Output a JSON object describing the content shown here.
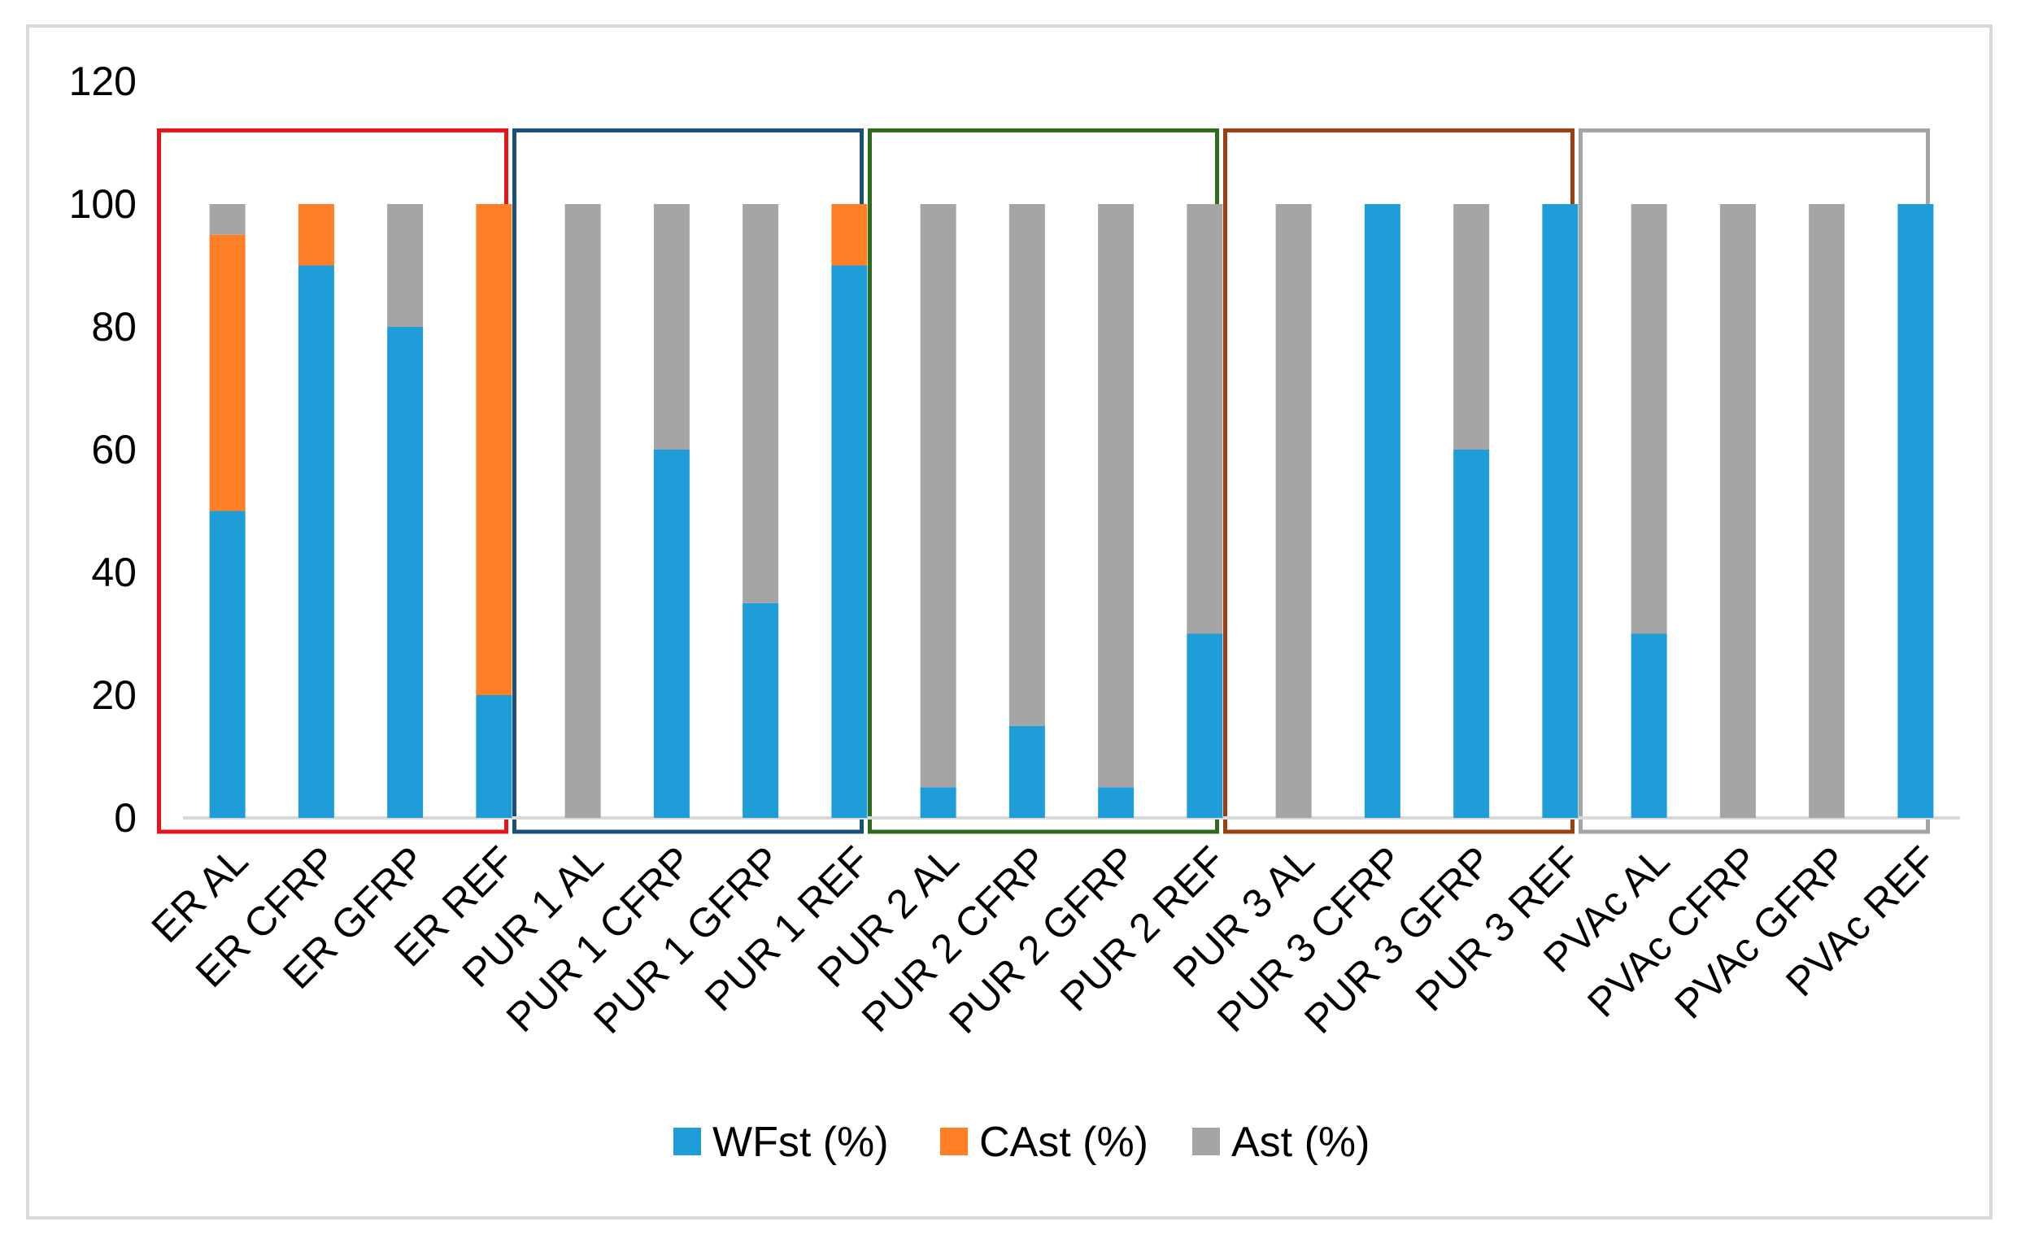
{
  "chart_data": {
    "type": "bar",
    "stacked": true,
    "title": "",
    "xlabel": "",
    "ylabel": "",
    "ylim": [
      0,
      120
    ],
    "yticks": [
      0,
      20,
      40,
      60,
      80,
      100,
      120
    ],
    "grid": false,
    "legend_position": "bottom",
    "categories": [
      "ER AL",
      "ER CFRP",
      "ER GFRP",
      "ER REF",
      "PUR 1 AL",
      "PUR 1 CFRP",
      "PUR 1 GFRP",
      "PUR 1 REF",
      "PUR 2 AL",
      "PUR 2 CFRP",
      "PUR 2 GFRP",
      "PUR 2 REF",
      "PUR 3 AL",
      "PUR 3 CFRP",
      "PUR 3 GFRP",
      "PUR 3 REF",
      "PVAc AL",
      "PVAc CFRP",
      "PVAc GFRP",
      "PVAc REF"
    ],
    "series": [
      {
        "name": "WFst (%)",
        "color": "#1f9dd9",
        "values": [
          50,
          90,
          80,
          20,
          0,
          60,
          35,
          90,
          5,
          15,
          5,
          30,
          0,
          100,
          60,
          100,
          30,
          0,
          0,
          100
        ]
      },
      {
        "name": "CAst (%)",
        "color": "#ff7f27",
        "values": [
          45,
          10,
          0,
          80,
          0,
          0,
          0,
          10,
          0,
          0,
          0,
          0,
          0,
          0,
          0,
          0,
          0,
          0,
          0,
          0
        ]
      },
      {
        "name": "Ast (%)",
        "color": "#a5a5a5",
        "values": [
          5,
          0,
          20,
          0,
          100,
          40,
          65,
          0,
          95,
          85,
          95,
          70,
          100,
          0,
          40,
          0,
          70,
          100,
          100,
          0
        ]
      }
    ],
    "groups": [
      {
        "name": "ER",
        "color": "#e8141c"
      },
      {
        "name": "PUR 1",
        "color": "#1b4f7c"
      },
      {
        "name": "PUR 2",
        "color": "#2e6b1f"
      },
      {
        "name": "PUR 3",
        "color": "#9a4013"
      },
      {
        "name": "PVAc",
        "color": "#a5a5a5"
      }
    ]
  }
}
